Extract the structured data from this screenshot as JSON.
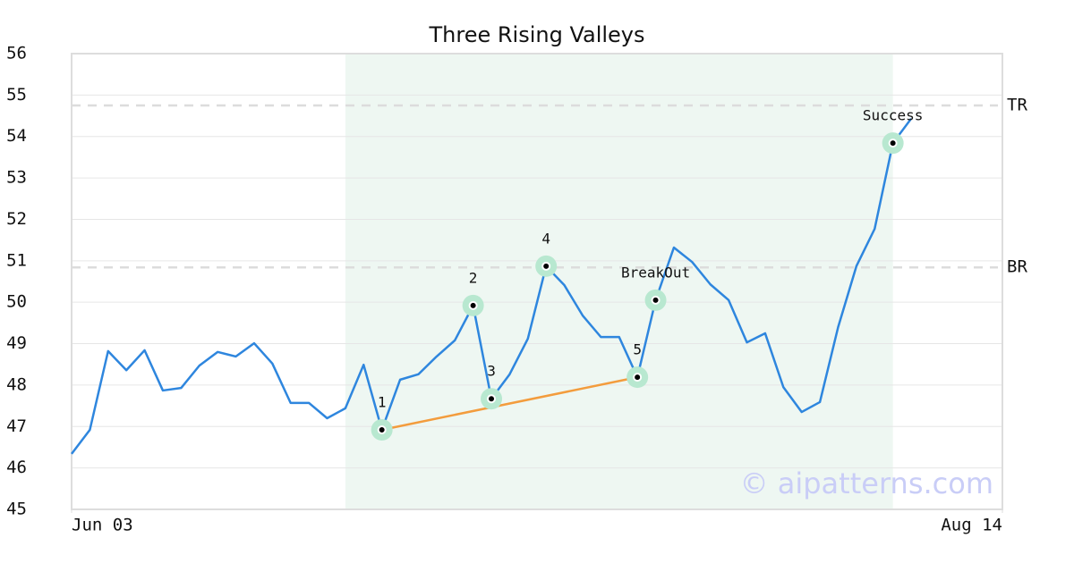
{
  "chart_data": {
    "type": "line",
    "title": "Three Rising Valleys",
    "x": [
      0,
      1,
      2,
      3,
      4,
      5,
      6,
      7,
      8,
      9,
      10,
      11,
      12,
      13,
      14,
      15,
      16,
      17,
      18,
      19,
      20,
      21,
      22,
      23,
      24,
      25,
      26,
      27,
      28,
      29,
      30,
      31,
      32,
      33,
      34,
      35,
      36,
      37,
      38,
      39,
      40,
      41,
      42,
      43,
      44,
      45,
      46
    ],
    "xlim": [
      0,
      51
    ],
    "xticks": [
      {
        "value": 0,
        "label": "Jun 03"
      },
      {
        "value": 51,
        "label": "Aug 14"
      }
    ],
    "series": [
      {
        "color": "#2e86de",
        "values": [
          46.34,
          46.92,
          48.82,
          48.36,
          48.84,
          47.87,
          47.93,
          48.47,
          48.8,
          48.69,
          49.01,
          48.52,
          47.57,
          47.57,
          47.2,
          47.44,
          48.49,
          46.92,
          48.13,
          48.26,
          48.69,
          49.08,
          49.92,
          47.67,
          48.26,
          49.12,
          50.87,
          50.41,
          49.68,
          49.16,
          49.16,
          48.19,
          50.05,
          51.32,
          50.97,
          50.43,
          50.05,
          49.03,
          49.25,
          47.95,
          47.35,
          47.59,
          49.4,
          50.87,
          51.77,
          53.84,
          54.43
        ]
      }
    ],
    "ylim": [
      45,
      56
    ],
    "yticks": [
      45,
      46,
      47,
      48,
      49,
      50,
      51,
      52,
      53,
      54,
      55,
      56
    ],
    "grid": true,
    "highlight": {
      "x": [
        15,
        45
      ],
      "color": "#eef7f2"
    },
    "hlines": [
      {
        "label": "TR",
        "value": 54.75
      },
      {
        "label": "BR",
        "value": 50.84
      }
    ],
    "trendline": {
      "color": "#f39c3d",
      "x": [
        17,
        31
      ],
      "values": [
        46.92,
        48.19
      ]
    },
    "annotations": [
      {
        "x": 17,
        "label": "1"
      },
      {
        "x": 22,
        "label": "2"
      },
      {
        "x": 23,
        "label": "3"
      },
      {
        "x": 26,
        "label": "4"
      },
      {
        "x": 31,
        "label": "5"
      },
      {
        "x": 32,
        "label": "BreakOut"
      },
      {
        "x": 45,
        "label": "Success"
      }
    ],
    "watermark": "© aipatterns.com"
  }
}
